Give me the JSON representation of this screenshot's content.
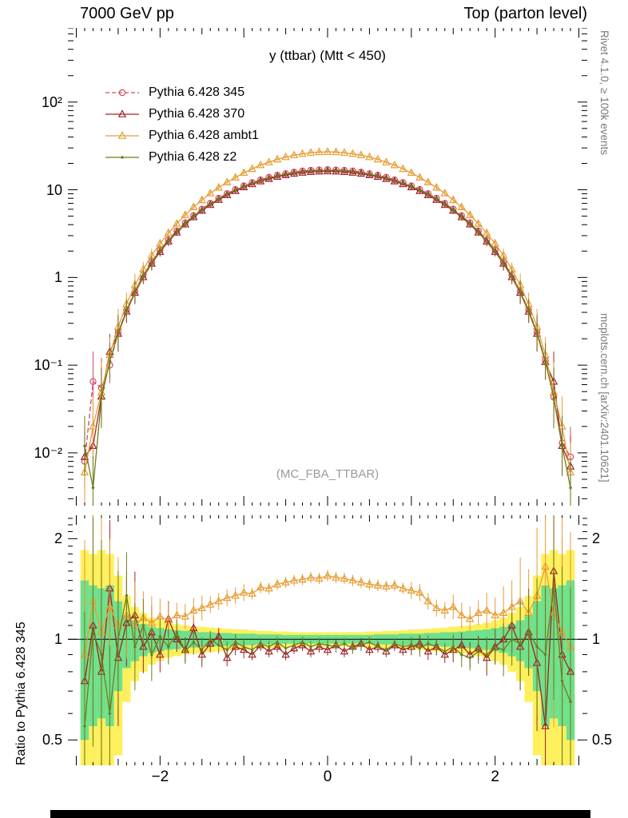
{
  "page": {
    "header_left": "7000 GeV pp",
    "header_right": "Top (parton level)",
    "watermark": "(MC_FBA_TTBAR)",
    "side_top": "Rivet 4.1.0, ≥ 100k events",
    "side_bottom": "mcplots.cern.ch [arXiv:2401.10621]"
  },
  "chart_data": {
    "type": "line",
    "title": "y (ttbar) (Mtt < 450)",
    "xlabel": "",
    "ylabel": "",
    "ratio_ylabel": "Ratio to Pythia 6.428 345",
    "reference": "Pythia 6.428 345",
    "bin_width": 0.1,
    "x_range": [
      -3.1,
      3.1
    ],
    "main_range": [
      0.0025,
      700
    ],
    "ratio_range": [
      0.42,
      2.35
    ],
    "main_axis": {
      "scale": "log",
      "ticks": [
        {
          "v": 100,
          "label": "10²"
        },
        {
          "v": 10,
          "label": "10"
        },
        {
          "v": 1,
          "label": "1"
        },
        {
          "v": 0.1,
          "label": "10⁻¹"
        },
        {
          "v": 0.01,
          "label": "10⁻²"
        }
      ]
    },
    "ratio_axis": {
      "scale": "log",
      "ticks": [
        {
          "v": 2,
          "label": "2"
        },
        {
          "v": 1,
          "label": "1"
        },
        {
          "v": 0.5,
          "label": "0.5"
        }
      ]
    },
    "x_ticks": [
      {
        "v": -2,
        "label": "−2"
      },
      {
        "v": 0,
        "label": "0"
      },
      {
        "v": 2,
        "label": "2"
      }
    ],
    "band_colors": {
      "yellow": "#fdf05c",
      "green": "#6fe08c"
    },
    "x": [
      -2.9,
      -2.8,
      -2.7,
      -2.6,
      -2.5,
      -2.4,
      -2.3,
      -2.2,
      -2.1,
      -2.0,
      -1.9,
      -1.8,
      -1.7,
      -1.6,
      -1.5,
      -1.4,
      -1.3,
      -1.2,
      -1.1,
      -1.0,
      -0.9,
      -0.8,
      -0.7,
      -0.6,
      -0.5,
      -0.4,
      -0.3,
      -0.2,
      -0.1,
      0.0,
      0.1,
      0.2,
      0.3,
      0.4,
      0.5,
      0.6,
      0.7,
      0.8,
      0.9,
      1.0,
      1.1,
      1.2,
      1.3,
      1.4,
      1.5,
      1.6,
      1.7,
      1.8,
      1.9,
      2.0,
      2.1,
      2.2,
      2.3,
      2.4,
      2.5,
      2.6,
      2.7,
      2.8,
      2.9
    ],
    "err_frac": [
      1.2,
      1.2,
      1.2,
      0.6,
      0.6,
      0.35,
      0.35,
      0.2,
      0.2,
      0.13,
      0.13,
      0.09,
      0.09,
      0.09,
      0.09,
      0.06,
      0.06,
      0.06,
      0.06,
      0.06,
      0.04,
      0.04,
      0.04,
      0.04,
      0.04,
      0.04,
      0.04,
      0.04,
      0.04,
      0.04,
      0.04,
      0.04,
      0.04,
      0.04,
      0.04,
      0.04,
      0.04,
      0.04,
      0.04,
      0.06,
      0.06,
      0.06,
      0.06,
      0.06,
      0.09,
      0.09,
      0.09,
      0.09,
      0.13,
      0.13,
      0.2,
      0.2,
      0.35,
      0.35,
      0.6,
      0.6,
      1.2,
      1.2,
      1.2
    ],
    "band_green": [
      0.5,
      0.45,
      0.42,
      0.45,
      0.3,
      0.18,
      0.14,
      0.11,
      0.09,
      0.08,
      0.07,
      0.065,
      0.06,
      0.055,
      0.05,
      0.05,
      0.045,
      0.045,
      0.04,
      0.04,
      0.04,
      0.035,
      0.035,
      0.035,
      0.03,
      0.03,
      0.03,
      0.03,
      0.03,
      0.03,
      0.03,
      0.03,
      0.03,
      0.03,
      0.03,
      0.035,
      0.035,
      0.035,
      0.04,
      0.04,
      0.04,
      0.045,
      0.045,
      0.05,
      0.05,
      0.055,
      0.06,
      0.065,
      0.07,
      0.08,
      0.09,
      0.11,
      0.14,
      0.18,
      0.3,
      0.45,
      0.42,
      0.45,
      0.5
    ],
    "band_yellow": [
      0.85,
      0.8,
      0.85,
      0.8,
      0.55,
      0.35,
      0.25,
      0.2,
      0.16,
      0.14,
      0.12,
      0.11,
      0.1,
      0.095,
      0.09,
      0.085,
      0.08,
      0.075,
      0.07,
      0.07,
      0.065,
      0.06,
      0.06,
      0.055,
      0.055,
      0.05,
      0.05,
      0.05,
      0.05,
      0.05,
      0.05,
      0.05,
      0.05,
      0.05,
      0.055,
      0.055,
      0.06,
      0.06,
      0.065,
      0.07,
      0.07,
      0.075,
      0.08,
      0.085,
      0.09,
      0.095,
      0.1,
      0.11,
      0.12,
      0.14,
      0.16,
      0.2,
      0.25,
      0.35,
      0.55,
      0.8,
      0.85,
      0.8,
      0.85
    ],
    "series": [
      {
        "name": "Pythia 6.428 345",
        "color": "#cf4a66",
        "marker": "circle-open",
        "line": "dashed",
        "values": [
          0.008,
          0.065,
          0.055,
          0.1,
          0.238,
          0.427,
          0.698,
          1.06,
          1.5,
          2.05,
          2.68,
          3.4,
          4.21,
          5.08,
          6.02,
          7.01,
          8.03,
          9.06,
          10.1,
          11.1,
          12.1,
          13.0,
          13.9,
          14.7,
          15.3,
          15.9,
          16.4,
          16.7,
          16.9,
          17.0,
          16.9,
          16.7,
          16.4,
          15.9,
          15.3,
          14.7,
          13.9,
          13.0,
          12.1,
          11.1,
          10.1,
          9.06,
          8.03,
          7.01,
          6.02,
          5.08,
          4.21,
          3.4,
          2.68,
          2.05,
          1.5,
          1.06,
          0.698,
          0.427,
          0.238,
          0.113,
          0.043,
          0.013,
          0.009
        ],
        "ratio": null
      },
      {
        "name": "Pythia 6.428 370",
        "color": "#a02128",
        "marker": "triangle-open",
        "line": "solid",
        "values": [
          0.009,
          0.012,
          0.044,
          0.142,
          0.228,
          0.409,
          0.67,
          1.01,
          1.44,
          1.96,
          2.57,
          3.26,
          4.04,
          4.87,
          5.78,
          6.72,
          7.7,
          8.69,
          9.68,
          10.7,
          11.6,
          12.5,
          13.3,
          14.1,
          14.7,
          15.3,
          15.7,
          16.0,
          16.2,
          16.3,
          16.2,
          16.0,
          15.7,
          15.3,
          14.7,
          14.1,
          13.3,
          12.5,
          11.6,
          10.7,
          9.68,
          8.69,
          7.7,
          6.72,
          5.78,
          4.87,
          4.04,
          3.26,
          2.57,
          1.96,
          1.44,
          1.01,
          0.67,
          0.409,
          0.228,
          0.109,
          0.065,
          0.012,
          0.007
        ],
        "ratio": [
          0.75,
          1.1,
          0.8,
          1.42,
          0.88,
          1.12,
          1.18,
          0.95,
          1.05,
          0.9,
          1.15,
          1.0,
          0.93,
          1.08,
          0.9,
          0.97,
          1.02,
          0.88,
          0.95,
          0.93,
          0.9,
          0.96,
          0.92,
          0.95,
          0.9,
          0.94,
          0.96,
          0.92,
          0.95,
          0.93,
          0.96,
          0.92,
          0.95,
          0.97,
          0.93,
          0.95,
          0.92,
          0.96,
          0.93,
          0.95,
          0.97,
          0.92,
          0.95,
          0.9,
          0.93,
          0.96,
          0.9,
          0.94,
          0.88,
          0.95,
          1.0,
          1.1,
          0.95,
          1.05,
          0.85,
          0.55,
          1.6,
          0.9,
          0.8
        ]
      },
      {
        "name": "Pythia 6.428 ambt1",
        "color": "#e79c33",
        "marker": "triangle-open",
        "line": "solid",
        "values": [
          0.006,
          0.02,
          0.049,
          0.131,
          0.274,
          0.497,
          0.82,
          1.24,
          1.78,
          2.43,
          3.2,
          4.11,
          5.16,
          6.34,
          7.64,
          9.11,
          10.6,
          12.2,
          13.8,
          15.6,
          17.3,
          19.1,
          20.6,
          22.2,
          23.6,
          24.8,
          25.7,
          26.5,
          26.9,
          27.1,
          26.9,
          26.5,
          25.7,
          24.8,
          23.6,
          22.2,
          20.6,
          19.1,
          17.3,
          15.6,
          13.8,
          12.2,
          10.6,
          9.11,
          7.64,
          6.34,
          5.16,
          4.11,
          3.2,
          2.43,
          1.78,
          1.24,
          0.82,
          0.497,
          0.274,
          0.131,
          0.049,
          0.02,
          0.006
        ],
        "ratio": [
          0.9,
          1.3,
          1.05,
          1.25,
          1.1,
          1.18,
          1.1,
          1.16,
          1.12,
          1.17,
          1.14,
          1.18,
          1.17,
          1.22,
          1.24,
          1.27,
          1.3,
          1.33,
          1.35,
          1.38,
          1.37,
          1.43,
          1.42,
          1.46,
          1.48,
          1.5,
          1.51,
          1.53,
          1.52,
          1.55,
          1.53,
          1.52,
          1.5,
          1.48,
          1.46,
          1.45,
          1.44,
          1.45,
          1.42,
          1.4,
          1.38,
          1.3,
          1.24,
          1.22,
          1.25,
          1.18,
          1.15,
          1.2,
          1.22,
          1.18,
          1.2,
          1.25,
          1.3,
          1.2,
          1.35,
          1.65,
          1.2,
          1.05,
          0.95
        ]
      },
      {
        "name": "Pythia 6.428 z2",
        "color": "#6f7d1c",
        "marker": "dot",
        "line": "solid",
        "values": [
          0.012,
          0.004,
          0.042,
          0.111,
          0.233,
          0.418,
          0.684,
          1.04,
          1.47,
          2.0,
          2.62,
          3.33,
          4.12,
          4.98,
          5.9,
          6.87,
          7.87,
          8.87,
          9.89,
          10.9,
          11.8,
          12.7,
          13.6,
          14.4,
          15.0,
          15.6,
          16.0,
          16.4,
          16.6,
          16.6,
          16.6,
          16.4,
          16.0,
          15.6,
          15.0,
          14.4,
          13.6,
          12.7,
          11.8,
          10.9,
          9.89,
          8.87,
          7.87,
          6.87,
          5.9,
          4.98,
          4.12,
          3.33,
          2.62,
          2.0,
          1.47,
          1.04,
          0.684,
          0.418,
          0.233,
          0.111,
          0.042,
          0.012,
          0.004
        ],
        "ratio": [
          0.55,
          1.05,
          0.9,
          0.6,
          1.0,
          1.35,
          0.95,
          1.1,
          0.9,
          1.02,
          0.95,
          1.05,
          0.92,
          0.98,
          0.93,
          1.0,
          0.96,
          0.93,
          0.98,
          0.95,
          0.93,
          0.97,
          0.95,
          0.98,
          0.94,
          0.96,
          0.98,
          0.95,
          0.97,
          0.96,
          0.95,
          0.97,
          0.94,
          0.96,
          0.98,
          0.95,
          0.93,
          0.97,
          0.95,
          0.96,
          0.94,
          0.97,
          0.95,
          0.92,
          0.95,
          0.9,
          0.88,
          0.92,
          0.9,
          0.95,
          0.93,
          1.0,
          0.97,
          1.05,
          0.95,
          0.9,
          1.45,
          0.75,
          0.65
        ]
      }
    ]
  }
}
